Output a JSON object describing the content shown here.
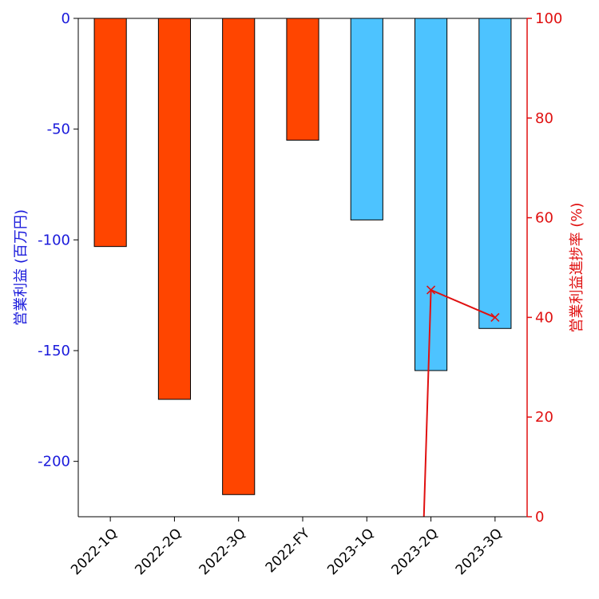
{
  "chart_data": {
    "type": "bar",
    "categories": [
      "2022-1Q",
      "2022-2Q",
      "2022-3Q",
      "2022-FY",
      "2023-1Q",
      "2023-2Q",
      "2023-3Q"
    ],
    "series": [
      {
        "values": [
          -103,
          -172,
          -215,
          -55,
          -91,
          -159,
          -140
        ],
        "colors": [
          "#ff4500",
          "#ff4500",
          "#ff4500",
          "#ff4500",
          "#4dc3ff",
          "#4dc3ff",
          "#4dc3ff"
        ],
        "axis": "left"
      },
      {
        "type": "line",
        "values": [
          null,
          null,
          null,
          null,
          null,
          45.5,
          40
        ],
        "color": "#e01010",
        "marker": "x",
        "axis": "right",
        "extends_below_axis": true
      }
    ],
    "ylabel": "営業利益 (百万円)",
    "y2label": "営業利益進捗率 (%)",
    "ylim": [
      -225,
      0
    ],
    "y2lim": [
      0,
      100
    ],
    "yticks": [
      0,
      -50,
      -100,
      -150,
      -200
    ],
    "y2ticks": [
      0,
      20,
      40,
      60,
      80,
      100
    ],
    "ytick_color": "#1a1adb",
    "y2tick_color": "#e01010",
    "grid": false,
    "bar_edge_color": "#000000"
  }
}
